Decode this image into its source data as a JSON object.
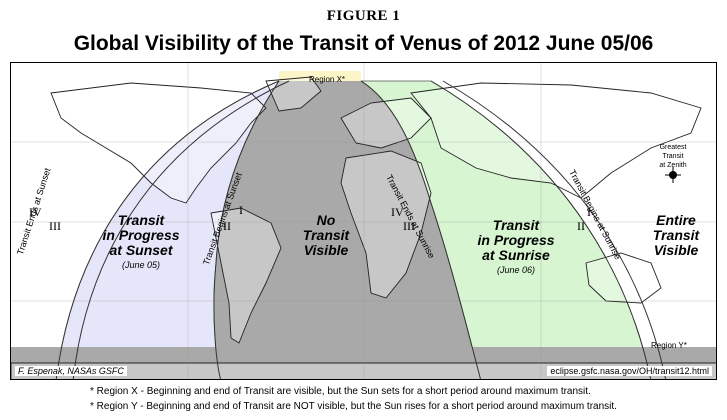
{
  "figure_label": "FIGURE 1",
  "title": "Global Visibility of the Transit of Venus of 2012 June 05/06",
  "regions": {
    "sunset_block": {
      "line1": "Transit",
      "line2": "in Progress",
      "line3": "at Sunset",
      "date": "(June 05)"
    },
    "not_visible": {
      "line1": "No",
      "line2": "Transit",
      "line3": "Visible"
    },
    "sunrise_block": {
      "line1": "Transit",
      "line2": "in Progress",
      "line3": "at Sunrise",
      "date": "(June 06)"
    },
    "entire": {
      "line1": "Entire",
      "line2": "Transit",
      "line3": "Visible"
    }
  },
  "curve_labels": {
    "ends_sunset": "Transit Ends at Sunset",
    "begins_sunset": "Transit Begins at Sunset",
    "ends_sunrise": "Transit Ends at Sunrise",
    "begins_sunrise": "Transit Begins at Sunrise"
  },
  "contacts": {
    "iv": "IV",
    "iii": "III",
    "ii": "II",
    "i": "I"
  },
  "region_x": "Region X*",
  "region_y": "Region Y*",
  "zenith": {
    "line1": "Greatest",
    "line2": "Transit",
    "line3": "at Zenith"
  },
  "credit_left": "F. Espenak, NASAs GSFC",
  "credit_right": "eclipse.gsfc.nasa.gov/OH/transit12.html",
  "notes": [
    "* Region X - Beginning and end of Transit are visible, but the Sun sets for a short period around maximum transit.",
    "* Region Y - Beginning and end of Transit are NOT visible, but the Sun rises for a short period around maximum transit."
  ],
  "colors": {
    "sunset_fill": "#e6e6fa",
    "night_fill": "#a9a9a9",
    "sunrise_fill": "#d6f5d0",
    "region_x_fill": "#fbf5c8",
    "ocean": "#ffffff"
  }
}
